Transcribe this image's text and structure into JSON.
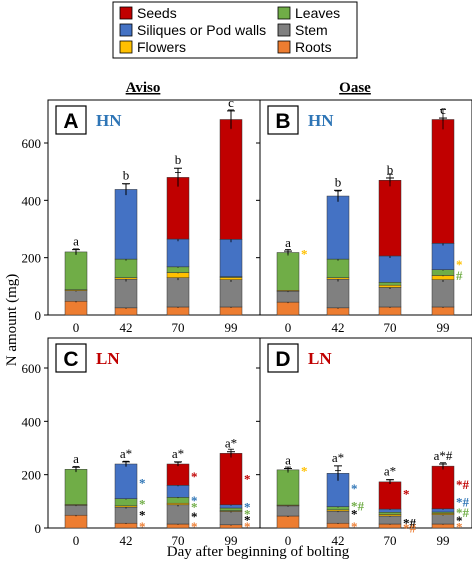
{
  "figure": {
    "y_axis_label": "N amount (mg)",
    "x_axis_label": "Day after beginning of bolting",
    "column_titles": [
      "Aviso",
      "Oase"
    ]
  },
  "legend": [
    {
      "label": "Seeds",
      "color": "#c00000"
    },
    {
      "label": "Leaves",
      "color": "#70ad47"
    },
    {
      "label": "Siliques or Pod walls",
      "color": "#4472c4"
    },
    {
      "label": "Stem",
      "color": "#808080"
    },
    {
      "label": "Flowers",
      "color": "#ffc000"
    },
    {
      "label": "Roots",
      "color": "#ed7d31"
    }
  ],
  "chart_data": [
    {
      "type": "bar",
      "stacked": true,
      "panel": "A",
      "treatment": "HN",
      "treatment_color": "#2e75b6",
      "cultivar": "Aviso",
      "categories": [
        "0",
        "42",
        "70",
        "99"
      ],
      "ylim": [
        0,
        700
      ],
      "yticks": [
        0,
        200,
        400,
        600
      ],
      "series": [
        {
          "name": "Roots",
          "color": "#ed7d31",
          "values": [
            48,
            25,
            28,
            28
          ]
        },
        {
          "name": "Stem",
          "color": "#808080",
          "values": [
            37,
            100,
            102,
            95
          ]
        },
        {
          "name": "Flowers",
          "color": "#ffc000",
          "values": [
            3,
            5,
            18,
            8
          ]
        },
        {
          "name": "Leaves",
          "color": "#70ad47",
          "values": [
            132,
            65,
            20,
            3
          ]
        },
        {
          "name": "Siliques or Pod walls",
          "color": "#4472c4",
          "values": [
            0,
            243,
            97,
            130
          ]
        },
        {
          "name": "Seeds",
          "color": "#c00000",
          "values": [
            0,
            0,
            215,
            418
          ]
        }
      ],
      "totals": [
        220,
        438,
        480,
        682
      ],
      "errors": [
        8,
        20,
        32,
        30
      ],
      "letters": [
        {
          "text": "a",
          "color": "#000000"
        },
        {
          "text": "b",
          "color": "#000000"
        },
        {
          "text": "b",
          "color": "#000000"
        },
        {
          "text": "c",
          "color": "#000000"
        }
      ],
      "side_marks": []
    },
    {
      "type": "bar",
      "stacked": true,
      "panel": "B",
      "treatment": "HN",
      "treatment_color": "#2e75b6",
      "cultivar": "Oase",
      "categories": [
        "0",
        "42",
        "70",
        "99"
      ],
      "ylim": [
        0,
        700
      ],
      "yticks": [
        0,
        200,
        400,
        600
      ],
      "series": [
        {
          "name": "Roots",
          "color": "#ed7d31",
          "values": [
            45,
            25,
            28,
            28
          ]
        },
        {
          "name": "Stem",
          "color": "#808080",
          "values": [
            38,
            100,
            68,
            95
          ]
        },
        {
          "name": "Flowers",
          "color": "#ffc000",
          "values": [
            3,
            5,
            8,
            15
          ]
        },
        {
          "name": "Leaves",
          "color": "#70ad47",
          "values": [
            132,
            65,
            10,
            20
          ]
        },
        {
          "name": "Siliques or Pod walls",
          "color": "#4472c4",
          "values": [
            0,
            220,
            92,
            92
          ]
        },
        {
          "name": "Seeds",
          "color": "#c00000",
          "values": [
            0,
            0,
            264,
            432
          ]
        }
      ],
      "totals": [
        218,
        415,
        470,
        682
      ],
      "errors": [
        5,
        20,
        8,
        5
      ],
      "letters": [
        {
          "text": "a",
          "color": "#000000"
        },
        {
          "text": "b",
          "color": "#000000"
        },
        {
          "text": "b",
          "color": "#000000"
        },
        {
          "text": "c",
          "color": "#000000"
        }
      ],
      "side_marks": [
        {
          "bar": 0,
          "value": 215,
          "text": "*",
          "color": "#ffc000"
        },
        {
          "bar": 3,
          "value": 178,
          "text": "*",
          "color": "#ffc000"
        },
        {
          "bar": 3,
          "value": 140,
          "text": "#",
          "color": "#70ad47"
        }
      ]
    },
    {
      "type": "bar",
      "stacked": true,
      "panel": "C",
      "treatment": "LN",
      "treatment_color": "#c00000",
      "cultivar": "Aviso",
      "categories": [
        "0",
        "42",
        "70",
        "99"
      ],
      "ylim": [
        0,
        700
      ],
      "yticks": [
        0,
        200,
        400,
        600
      ],
      "series": [
        {
          "name": "Roots",
          "color": "#ed7d31",
          "values": [
            48,
            18,
            15,
            12
          ]
        },
        {
          "name": "Stem",
          "color": "#808080",
          "values": [
            37,
            60,
            72,
            50
          ]
        },
        {
          "name": "Flowers",
          "color": "#ffc000",
          "values": [
            3,
            5,
            6,
            3
          ]
        },
        {
          "name": "Leaves",
          "color": "#70ad47",
          "values": [
            132,
            27,
            22,
            10
          ]
        },
        {
          "name": "Siliques or Pod walls",
          "color": "#4472c4",
          "values": [
            0,
            130,
            45,
            12
          ]
        },
        {
          "name": "Seeds",
          "color": "#c00000",
          "values": [
            0,
            0,
            80,
            193
          ]
        }
      ],
      "totals": [
        220,
        240,
        240,
        280
      ],
      "errors": [
        8,
        8,
        8,
        6
      ],
      "letters": [
        {
          "text": "a",
          "color": "#000000"
        },
        {
          "text": "a*",
          "color": "#000000"
        },
        {
          "text": "a*",
          "color": "#000000"
        },
        {
          "text": "a*",
          "color": "#000000"
        }
      ],
      "side_marks": [
        {
          "bar": 1,
          "value": 170,
          "text": "*",
          "color": "#2e75b6"
        },
        {
          "bar": 1,
          "value": 92,
          "text": "*",
          "color": "#70ad47"
        },
        {
          "bar": 1,
          "value": 50,
          "text": "*",
          "color": "#000000"
        },
        {
          "bar": 1,
          "value": 8,
          "text": "*",
          "color": "#ed7d31"
        },
        {
          "bar": 2,
          "value": 195,
          "text": "*",
          "color": "#c00000"
        },
        {
          "bar": 2,
          "value": 105,
          "text": "*",
          "color": "#2e75b6"
        },
        {
          "bar": 2,
          "value": 80,
          "text": "*",
          "color": "#70ad47"
        },
        {
          "bar": 2,
          "value": 45,
          "text": "*",
          "color": "#000000"
        },
        {
          "bar": 2,
          "value": 8,
          "text": "*",
          "color": "#ed7d31"
        },
        {
          "bar": 3,
          "value": 185,
          "text": "*",
          "color": "#c00000"
        },
        {
          "bar": 3,
          "value": 80,
          "text": "*",
          "color": "#2e75b6"
        },
        {
          "bar": 3,
          "value": 55,
          "text": "*",
          "color": "#70ad47"
        },
        {
          "bar": 3,
          "value": 32,
          "text": "*",
          "color": "#000000"
        },
        {
          "bar": 3,
          "value": 8,
          "text": "*",
          "color": "#ed7d31"
        }
      ]
    },
    {
      "type": "bar",
      "stacked": true,
      "panel": "D",
      "treatment": "LN",
      "treatment_color": "#c00000",
      "cultivar": "Oase",
      "categories": [
        "0",
        "42",
        "70",
        "99"
      ],
      "ylim": [
        0,
        700
      ],
      "yticks": [
        0,
        200,
        400,
        600
      ],
      "series": [
        {
          "name": "Roots",
          "color": "#ed7d31",
          "values": [
            45,
            18,
            15,
            15
          ]
        },
        {
          "name": "Stem",
          "color": "#808080",
          "values": [
            38,
            45,
            30,
            35
          ]
        },
        {
          "name": "Flowers",
          "color": "#ffc000",
          "values": [
            3,
            5,
            6,
            5
          ]
        },
        {
          "name": "Leaves",
          "color": "#70ad47",
          "values": [
            132,
            12,
            8,
            5
          ]
        },
        {
          "name": "Siliques or Pod walls",
          "color": "#4472c4",
          "values": [
            0,
            125,
            12,
            12
          ]
        },
        {
          "name": "Seeds",
          "color": "#c00000",
          "values": [
            0,
            0,
            102,
            160
          ]
        }
      ],
      "totals": [
        218,
        205,
        173,
        232
      ],
      "errors": [
        5,
        28,
        8,
        8
      ],
      "letters": [
        {
          "text": "a",
          "color": "#000000"
        },
        {
          "text": "a*",
          "color": "#000000"
        },
        {
          "text": "a*",
          "color": "#000000"
        },
        {
          "text": "a*#",
          "color": "#000000"
        }
      ],
      "side_marks": [
        {
          "bar": 0,
          "value": 215,
          "text": "*",
          "color": "#ffc000"
        },
        {
          "bar": 1,
          "value": 150,
          "text": "*",
          "color": "#2e75b6"
        },
        {
          "bar": 1,
          "value": 85,
          "text": "*#",
          "color": "#70ad47"
        },
        {
          "bar": 1,
          "value": 55,
          "text": "*",
          "color": "#000000"
        },
        {
          "bar": 1,
          "value": 8,
          "text": "*",
          "color": "#ed7d31"
        },
        {
          "bar": 2,
          "value": 130,
          "text": "*",
          "color": "#c00000"
        },
        {
          "bar": 2,
          "value": 20,
          "text": "*#",
          "color": "#000000"
        },
        {
          "bar": 2,
          "value": 2,
          "text": "*#",
          "color": "#ed7d31"
        },
        {
          "bar": 3,
          "value": 165,
          "text": "*#",
          "color": "#c00000"
        },
        {
          "bar": 3,
          "value": 100,
          "text": "*#",
          "color": "#2e75b6"
        },
        {
          "bar": 3,
          "value": 60,
          "text": "*#",
          "color": "#70ad47"
        },
        {
          "bar": 3,
          "value": 30,
          "text": "*",
          "color": "#000000"
        },
        {
          "bar": 3,
          "value": 5,
          "text": "*",
          "color": "#ed7d31"
        }
      ]
    }
  ]
}
